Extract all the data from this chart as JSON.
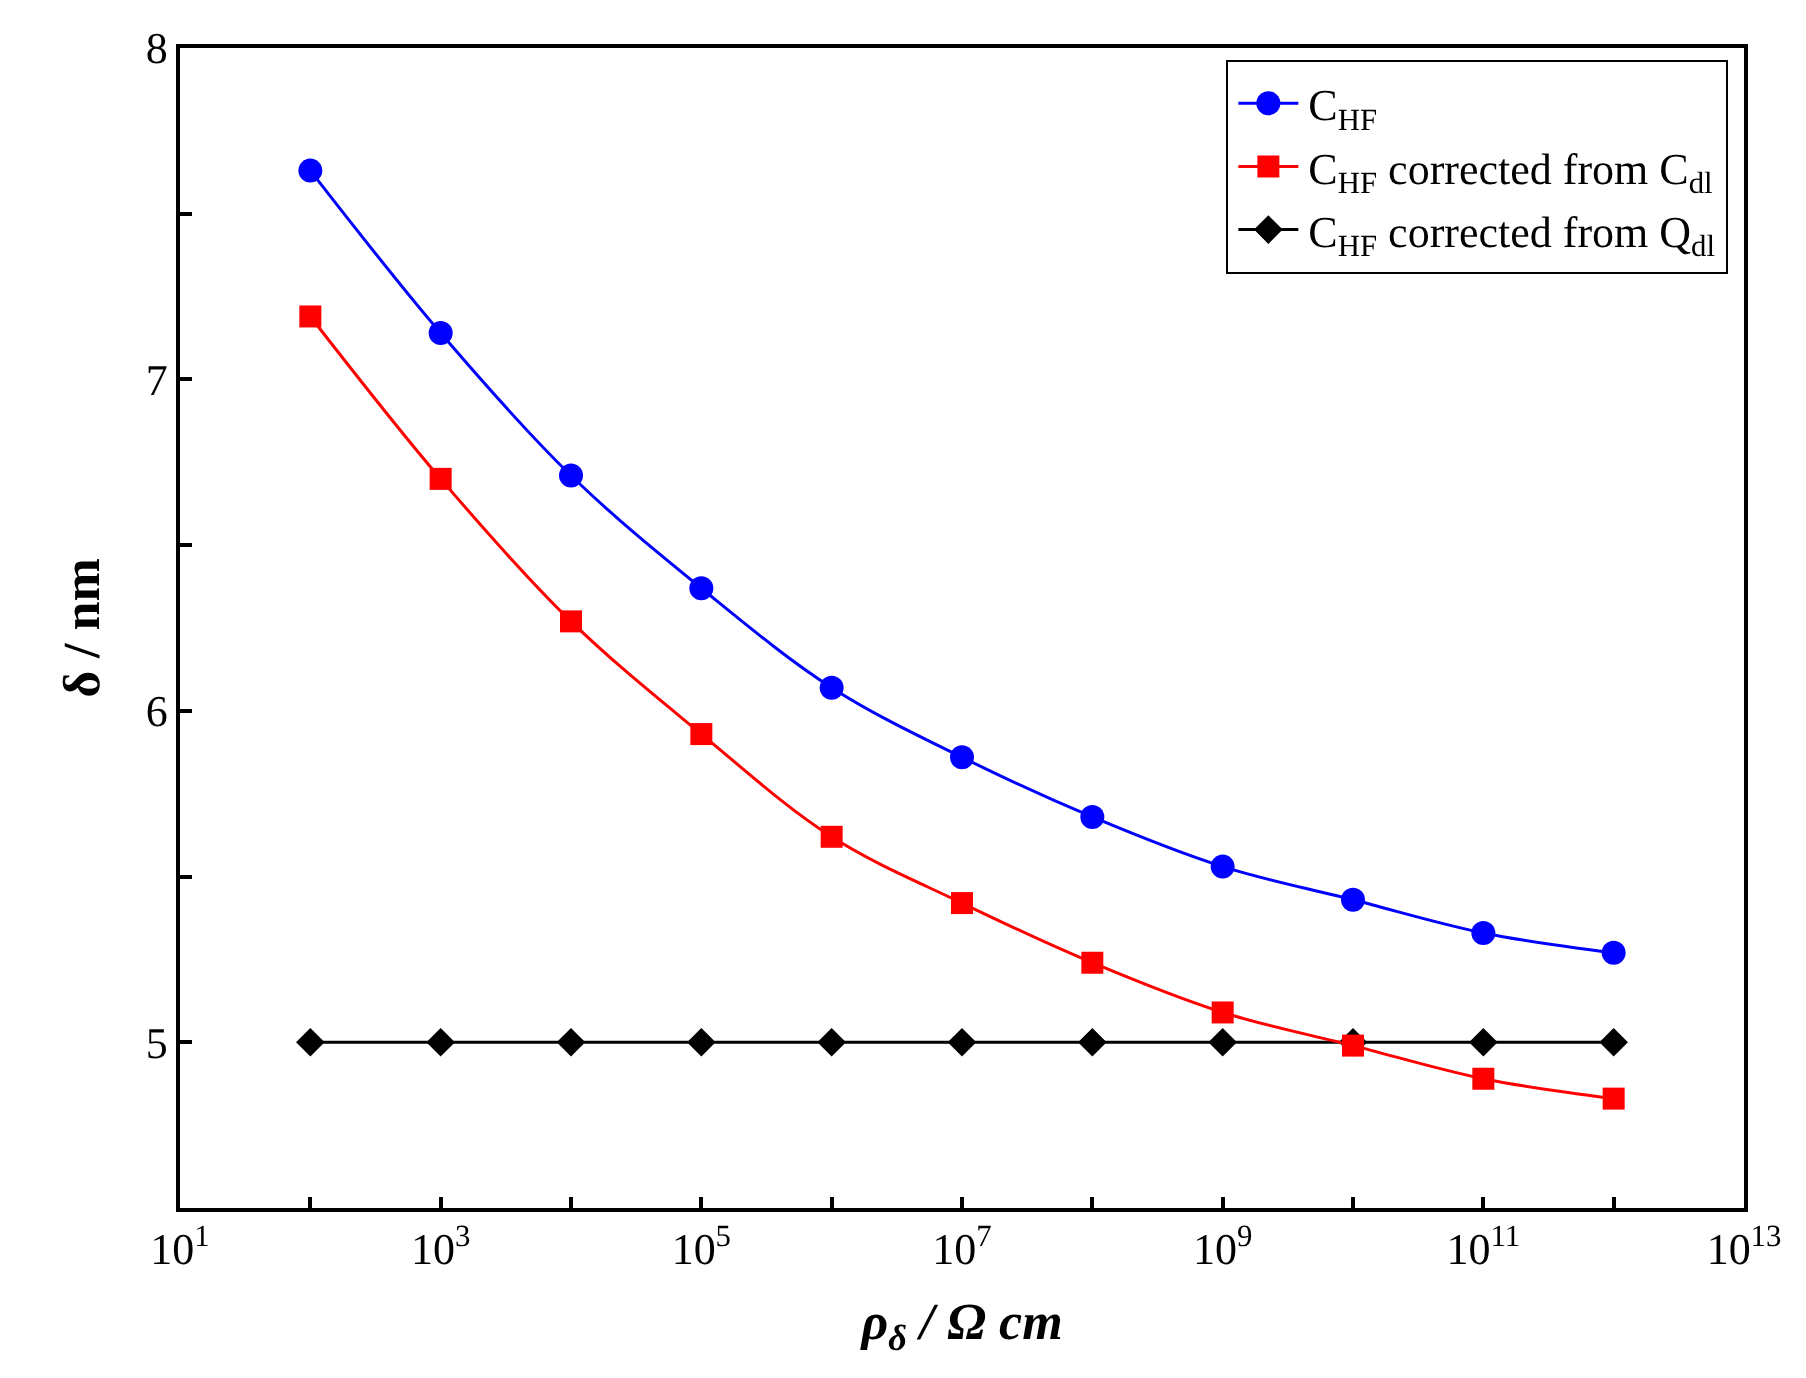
{
  "chart_data": {
    "type": "line",
    "xlabel": "ρ$_{δ}$ / Ω cm",
    "ylabel": "δ / nm",
    "log": "x",
    "legend": "top right",
    "line_style": "solid",
    "x": [
      100.0,
      1000.0,
      10000.0,
      100000.0,
      1000000.0,
      10000000.0,
      100000000.0,
      1000000000.0,
      10000000000.0,
      100000000000.0,
      1000000000000.0
    ],
    "xlim": [
      10.0,
      10000000000000.0
    ],
    "xticks": [
      {
        "value": 10.0,
        "label": "10$^{1}$"
      },
      {
        "value": 100.0,
        "label": null
      },
      {
        "value": 1000.0,
        "label": "10$^{3}$"
      },
      {
        "value": 10000.0,
        "label": null
      },
      {
        "value": 100000.0,
        "label": "10$^{5}$"
      },
      {
        "value": 1000000.0,
        "label": null
      },
      {
        "value": 10000000.0,
        "label": "10$^{7}$"
      },
      {
        "value": 100000000.0,
        "label": null
      },
      {
        "value": 1000000000.0,
        "label": "10$^{9}$"
      },
      {
        "value": 10000000000.0,
        "label": null
      },
      {
        "value": 100000000000.0,
        "label": "10$^{11}$"
      },
      {
        "value": 1000000000000.0,
        "label": null
      },
      {
        "value": 10000000000000.0,
        "label": "10$^{13}$"
      }
    ],
    "ylim": [
      4.5,
      8
    ],
    "yticks": [
      {
        "value": 4.5,
        "label": null
      },
      5,
      {
        "value": 5.5,
        "label": null
      },
      6,
      {
        "value": 6.5,
        "label": null
      },
      7,
      {
        "value": 7.5,
        "label": null
      },
      8
    ],
    "series": [
      {
        "name": "C$_{HF}$",
        "color": "#0000ff",
        "marker": "circle",
        "values": [
          7.63,
          7.14,
          6.71,
          6.37,
          6.07,
          5.86,
          5.68,
          5.53,
          5.43,
          5.33,
          5.27
        ]
      },
      {
        "name": "C$_{HF}$ corrected from C$_{dl}$",
        "color": "#ff0000",
        "marker": "square",
        "values": [
          7.19,
          6.7,
          6.27,
          5.93,
          5.62,
          5.42,
          5.24,
          5.09,
          4.99,
          4.89,
          4.83
        ]
      },
      {
        "name": "C$_{HF}$ corrected from Q$_{dl}$",
        "color": "#000000",
        "marker": "diamond",
        "values": [
          5,
          5,
          5,
          5,
          5,
          5,
          5,
          5,
          5,
          5,
          5
        ]
      }
    ]
  }
}
